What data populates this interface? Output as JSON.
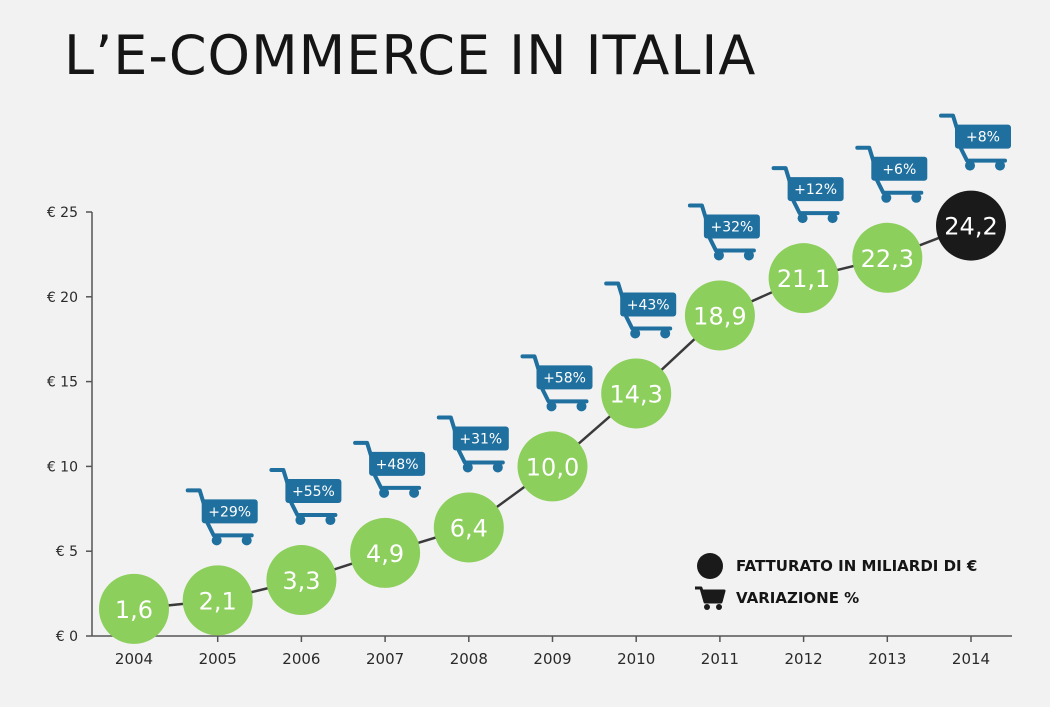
{
  "title": "L’E-COMMERCE IN ITALIA",
  "chart_data": {
    "type": "line",
    "categories": [
      "2004",
      "2005",
      "2006",
      "2007",
      "2008",
      "2009",
      "2010",
      "2011",
      "2012",
      "2013",
      "2014"
    ],
    "values": [
      1.6,
      2.1,
      3.3,
      4.9,
      6.4,
      10.0,
      14.3,
      18.9,
      21.1,
      22.3,
      24.2
    ],
    "value_labels": [
      "1,6",
      "2,1",
      "3,3",
      "4,9",
      "6,4",
      "10,0",
      "14,3",
      "18,9",
      "21,1",
      "22,3",
      "24,2"
    ],
    "variation_labels": [
      "",
      "+29%",
      "+55%",
      "+48%",
      "+31%",
      "+58%",
      "+43%",
      "+32%",
      "+12%",
      "+6%",
      "+8%"
    ],
    "yticks": [
      0,
      5,
      10,
      15,
      20,
      25
    ],
    "ytick_labels": [
      "€ 0",
      "€ 5",
      "€ 10",
      "€ 15",
      "€ 20",
      "€ 25"
    ],
    "ylim": [
      0,
      25
    ],
    "grid": false,
    "legend": [
      {
        "label": "FATTURATO IN MILIARDI DI €",
        "symbol": "black-circle-icon"
      },
      {
        "label": "VARIAZIONE %",
        "symbol": "shopping-cart-icon"
      }
    ],
    "legend_position": "bottom-right",
    "colors": {
      "marker": "#8ccf5c",
      "marker_highlight": "#1a1a1a",
      "cart": "#1f6f9f",
      "line": "#3a3a3a",
      "axis": "#555555"
    }
  }
}
